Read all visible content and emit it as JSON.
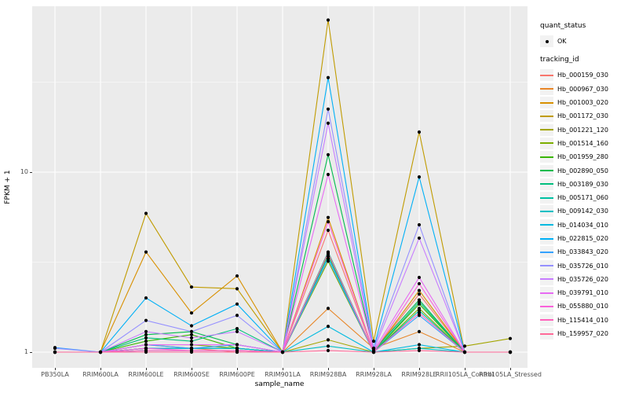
{
  "figure": {
    "panel_bg": "#EBEBEB",
    "grid_color": "#FFFFFF",
    "legend_key_bg": "#F2F2F2",
    "tick_label_color": "#4D4D4D",
    "point_color": "#000000"
  },
  "axes": {
    "x_title": "sample_name",
    "y_title": "FPKM + 1",
    "y_tick_labels": [
      "1",
      "10"
    ]
  },
  "legend": {
    "quant_status_title": "quant_status",
    "quant_status_items": [
      {
        "label": "OK"
      }
    ],
    "tracking_id_title": "tracking_id"
  },
  "chart_data": {
    "type": "line",
    "title": "",
    "xlabel": "sample_name",
    "ylabel": "FPKM + 1",
    "y_scale": "log10",
    "y_ticks": [
      1,
      10
    ],
    "y_minor_ticks": [
      3.162,
      31.62
    ],
    "ylim": [
      0.82,
      83.5
    ],
    "grid": true,
    "legend_position": "right",
    "point_shape": "filled-circle-black",
    "quant_status_all": "OK",
    "x_categories": [
      "PB350LA",
      "RRIM600LA",
      "RRIM600LE",
      "RRIM600SE",
      "RRIM600PE",
      "RRIM901LA",
      "RRIM928BA",
      "RRIM928LA",
      "RRIM928LE",
      "RRII105LA_Control",
      "RRII105LA_Stressed"
    ],
    "series": [
      {
        "name": "Hb_000159_030",
        "color": "#F8766D",
        "values": [
          1,
          1,
          1.05,
          1.05,
          1,
          1,
          4.75,
          1,
          2.1,
          1,
          1
        ]
      },
      {
        "name": "Hb_000967_030",
        "color": "#E88526",
        "values": [
          1,
          1,
          1.1,
          1.05,
          1.05,
          1,
          1.75,
          1.05,
          1.3,
          1,
          1
        ]
      },
      {
        "name": "Hb_001003_020",
        "color": "#D89000",
        "values": [
          1,
          1,
          3.6,
          1.65,
          2.65,
          1,
          5.6,
          1,
          2.2,
          1,
          1
        ]
      },
      {
        "name": "Hb_001172_030",
        "color": "#C09B00",
        "values": [
          1,
          1,
          5.9,
          2.3,
          2.25,
          1,
          70,
          1.15,
          16.7,
          1,
          1
        ]
      },
      {
        "name": "Hb_001221_120",
        "color": "#A3A500",
        "values": [
          1,
          1,
          1.05,
          1.05,
          1.05,
          1,
          1.17,
          1,
          1.05,
          1.08,
          1.19
        ]
      },
      {
        "name": "Hb_001514_160",
        "color": "#7CAE00",
        "values": [
          1,
          1,
          1.1,
          1.1,
          1.05,
          1,
          3.2,
          1,
          1.75,
          1,
          1
        ]
      },
      {
        "name": "Hb_001959_280",
        "color": "#39B600",
        "values": [
          1,
          1,
          1.15,
          1.25,
          1.05,
          1,
          3.5,
          1,
          1.85,
          1,
          1
        ]
      },
      {
        "name": "Hb_002890_050",
        "color": "#00BB4E",
        "values": [
          1,
          1,
          1.25,
          1.3,
          1.1,
          1,
          12.5,
          1.02,
          1.95,
          1,
          1
        ]
      },
      {
        "name": "Hb_003189_030",
        "color": "#00BF7D",
        "values": [
          1,
          1,
          1.2,
          1.15,
          1.35,
          1,
          3.6,
          1,
          1.9,
          1,
          1
        ]
      },
      {
        "name": "Hb_005171_060",
        "color": "#00C1A3",
        "values": [
          1,
          1,
          1.05,
          1.05,
          1.05,
          1,
          3.4,
          1,
          1.7,
          1,
          1
        ]
      },
      {
        "name": "Hb_009142_030",
        "color": "#00BFC4",
        "values": [
          1,
          1,
          1.02,
          1.02,
          1.02,
          1,
          1.08,
          1,
          1.05,
          1,
          1
        ]
      },
      {
        "name": "Hb_014034_010",
        "color": "#00BAE0",
        "values": [
          1,
          1,
          1.05,
          1.05,
          1.05,
          1,
          1.39,
          1,
          1.1,
          1,
          1
        ]
      },
      {
        "name": "Hb_022815_020",
        "color": "#00B0F6",
        "values": [
          1,
          1,
          2.0,
          1.4,
          1.85,
          1,
          33.5,
          1.05,
          9.4,
          1,
          1
        ]
      },
      {
        "name": "Hb_033843_020",
        "color": "#35A2FF",
        "values": [
          1.06,
          1,
          1.1,
          1.05,
          1.1,
          1,
          3.3,
          1,
          1.6,
          1,
          1
        ]
      },
      {
        "name": "Hb_035726_010",
        "color": "#9590FF",
        "values": [
          1.05,
          1,
          1.5,
          1.3,
          1.6,
          1,
          22.4,
          1.05,
          5.1,
          1,
          1
        ]
      },
      {
        "name": "Hb_035726_020",
        "color": "#C77CFF",
        "values": [
          1,
          1,
          1.3,
          1.2,
          1.3,
          1,
          18.7,
          1.02,
          4.3,
          1,
          1
        ]
      },
      {
        "name": "Hb_039791_010",
        "color": "#E76BF3",
        "values": [
          1,
          1,
          1.1,
          1.1,
          1.1,
          1,
          9.7,
          1.02,
          2.6,
          1,
          1
        ]
      },
      {
        "name": "Hb_055880_010",
        "color": "#FA62DB",
        "values": [
          1,
          1,
          1.05,
          1.02,
          1.02,
          1,
          5.3,
          1,
          2.4,
          1,
          1
        ]
      },
      {
        "name": "Hb_115414_010",
        "color": "#FF62BC",
        "values": [
          1,
          1,
          1.02,
          1.02,
          1.02,
          1,
          3.55,
          1,
          1.65,
          1,
          1
        ]
      },
      {
        "name": "Hb_159957_020",
        "color": "#FF6A98",
        "values": [
          1,
          1,
          1,
          1,
          1,
          1,
          1.02,
          1,
          1.02,
          1,
          1
        ]
      }
    ]
  }
}
